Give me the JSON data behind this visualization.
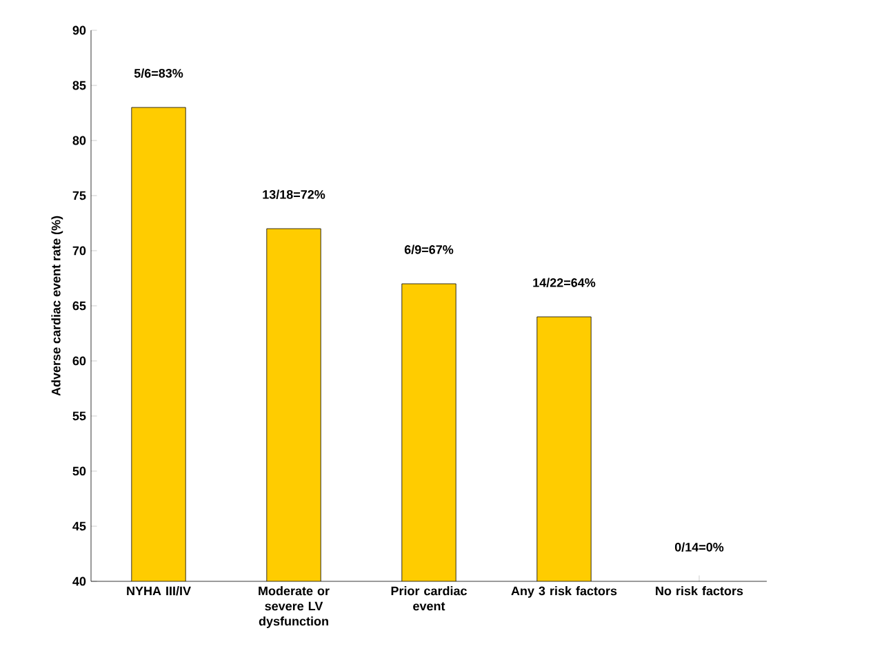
{
  "chart_data": {
    "type": "bar",
    "ylabel": "Adverse cardiac event rate (%)",
    "categories": [
      "NYHA III/IV",
      "Moderate or severe LV dysfunction",
      "Prior cardiac event",
      "Any 3 risk factors",
      "No risk factors"
    ],
    "values": [
      83,
      72,
      67,
      64,
      null
    ],
    "value_labels": [
      "5/6=83%",
      "13/18=72%",
      "6/9=67%",
      "14/22=64%",
      "0/14=0%"
    ],
    "color": "#ffcc00",
    "ylim": [
      40,
      90
    ],
    "yticks": [
      40,
      45,
      50,
      55,
      60,
      65,
      70,
      75,
      80,
      85,
      90
    ],
    "grid": false
  }
}
